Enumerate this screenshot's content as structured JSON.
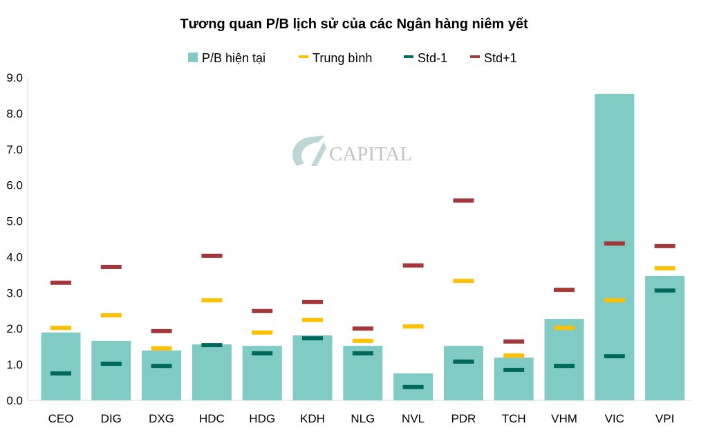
{
  "chart_data": {
    "type": "bar",
    "title": "Tương quan P/B lịch sử của các Ngân hàng niêm yết",
    "categories": [
      "CEO",
      "DIG",
      "DXG",
      "HDC",
      "HDG",
      "KDH",
      "NLG",
      "NVL",
      "PDR",
      "TCH",
      "VHM",
      "VIC",
      "VPI"
    ],
    "series": [
      {
        "name": "P/B hiện tại",
        "kind": "bar",
        "color": "#80CBC4",
        "values": [
          1.89,
          1.66,
          1.39,
          1.56,
          1.52,
          1.81,
          1.52,
          0.75,
          1.52,
          1.19,
          2.27,
          8.54,
          3.47
        ]
      },
      {
        "name": "Trung bình",
        "kind": "marker",
        "color": "#FFC000",
        "values": [
          2.02,
          2.37,
          1.45,
          2.79,
          1.89,
          2.24,
          1.66,
          2.06,
          3.33,
          1.25,
          2.02,
          2.79,
          3.68
        ]
      },
      {
        "name": "Std-1",
        "kind": "marker",
        "color": "#00695C",
        "values": [
          0.75,
          1.02,
          0.96,
          1.54,
          1.31,
          1.73,
          1.31,
          0.37,
          1.08,
          0.85,
          0.96,
          1.23,
          3.06
        ]
      },
      {
        "name": "Std+1",
        "kind": "marker",
        "color": "#A4373A",
        "values": [
          3.28,
          3.72,
          1.93,
          4.03,
          2.49,
          2.74,
          2.0,
          3.76,
          5.57,
          1.64,
          3.08,
          4.37,
          4.3
        ]
      }
    ],
    "ylim": [
      0,
      9
    ],
    "yticks": [
      "0.0",
      "1.0",
      "2.0",
      "3.0",
      "4.0",
      "5.0",
      "6.0",
      "7.0",
      "8.0",
      "9.0"
    ],
    "grid": false,
    "legend_position": "top"
  },
  "watermark": "CAPITAL"
}
